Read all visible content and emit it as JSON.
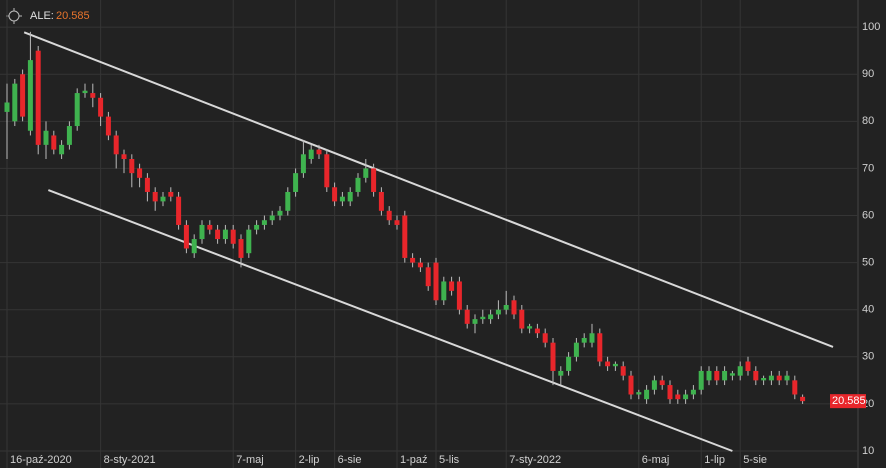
{
  "chart_data": {
    "type": "candlestick",
    "symbol_label": "ALE:",
    "last_label": "20.585",
    "up_color": "#3fb34f",
    "down_color": "#e8262b",
    "last_label_color": "#e8742c",
    "trendline_color": "#d8d8d8",
    "categories": [
      "16-paź-2020",
      null,
      null,
      null,
      null,
      null,
      null,
      null,
      null,
      null,
      null,
      null,
      "8-sty-2021",
      null,
      null,
      null,
      null,
      null,
      null,
      null,
      null,
      null,
      null,
      null,
      null,
      null,
      null,
      null,
      null,
      "7-maj",
      null,
      null,
      null,
      null,
      null,
      null,
      null,
      "2-lip",
      null,
      null,
      null,
      null,
      "6-sie",
      null,
      null,
      null,
      null,
      null,
      null,
      null,
      "1-paź",
      null,
      null,
      null,
      null,
      "5-lis",
      null,
      null,
      null,
      null,
      null,
      null,
      null,
      null,
      "7-sty-2022",
      null,
      null,
      null,
      null,
      null,
      null,
      null,
      null,
      null,
      null,
      null,
      null,
      null,
      null,
      null,
      null,
      "6-maj",
      null,
      null,
      null,
      null,
      null,
      null,
      null,
      "1-lip",
      null,
      null,
      null,
      null,
      "5-sie",
      null,
      null,
      null,
      null,
      null,
      null,
      null,
      null
    ],
    "open": [
      82,
      80,
      90,
      78,
      95,
      75,
      77,
      73,
      75,
      79,
      86,
      86,
      85,
      81,
      77,
      73,
      72,
      70,
      68,
      65,
      63,
      65,
      64,
      58,
      52,
      55,
      58,
      57,
      55,
      57,
      55,
      52,
      57,
      58,
      59,
      60,
      61,
      65,
      69,
      72,
      74,
      73,
      66,
      63,
      63,
      65,
      68,
      70,
      65,
      61,
      59,
      60,
      51,
      50,
      49,
      50,
      42,
      46,
      46,
      40,
      37,
      38,
      38,
      39,
      40,
      42,
      40,
      36,
      36,
      35,
      33,
      26,
      27,
      30,
      33,
      33,
      35,
      29,
      28,
      28,
      26,
      22,
      21,
      23,
      25,
      24,
      22,
      21,
      22,
      23,
      25,
      27,
      25,
      26,
      26,
      29,
      27,
      25,
      25,
      26,
      25,
      25,
      21.5
    ],
    "high": [
      88,
      89,
      91,
      99,
      96,
      80,
      78,
      76,
      80,
      87,
      88,
      88,
      86,
      82,
      78,
      74,
      73,
      71,
      69,
      66,
      65,
      66,
      65,
      59,
      56,
      59,
      59,
      58,
      58,
      58,
      56,
      58,
      59,
      60,
      61,
      62,
      66,
      70,
      76,
      75,
      75,
      74,
      67,
      65,
      66,
      69,
      72,
      71,
      66,
      62,
      60,
      61,
      52,
      51,
      50,
      51,
      47,
      47,
      47,
      41,
      39,
      40,
      40,
      42,
      44,
      43,
      41,
      37,
      37,
      36,
      34,
      28,
      31,
      34,
      35,
      37,
      36,
      30,
      29,
      29,
      27,
      23,
      24,
      26,
      26,
      25,
      23,
      23,
      24,
      28,
      28,
      28,
      28,
      27,
      29,
      30,
      28,
      26,
      27,
      27,
      27,
      26,
      22
    ],
    "low": [
      72,
      79,
      80,
      77,
      73,
      72,
      73,
      72,
      74,
      78,
      85,
      83,
      79,
      76,
      70,
      69,
      66,
      66,
      63,
      61,
      62,
      63,
      57,
      52,
      51,
      54,
      56,
      54,
      54,
      53,
      49,
      51,
      56,
      57,
      58,
      59,
      60,
      64,
      68,
      71,
      72,
      65,
      62,
      62,
      62,
      64,
      67,
      64,
      60,
      58,
      57,
      50,
      49,
      48,
      44,
      41,
      41,
      43,
      39,
      36,
      35,
      37,
      37,
      38,
      39,
      38,
      35,
      35,
      34,
      32,
      24,
      24,
      26,
      29,
      32,
      32,
      28,
      27,
      27,
      25,
      21,
      21,
      20,
      22,
      23,
      20,
      20,
      20,
      21,
      22,
      24,
      24,
      24,
      25,
      25,
      26,
      24,
      24,
      24,
      24,
      24,
      21,
      20
    ],
    "close": [
      84,
      88,
      81,
      93,
      75,
      78,
      74,
      75,
      79,
      86,
      86.5,
      85,
      81,
      77,
      73,
      72,
      69,
      68,
      65,
      63,
      64,
      64,
      58,
      53,
      55,
      58,
      57,
      55,
      57,
      54,
      51,
      57,
      58,
      59,
      60,
      61,
      65,
      69,
      73,
      74,
      73,
      66,
      63,
      64,
      65,
      68,
      70,
      65,
      61,
      59,
      58,
      51,
      50,
      49,
      45,
      42,
      46,
      44,
      40,
      37,
      38,
      38.5,
      39,
      40,
      41,
      39,
      36,
      36.5,
      35,
      33,
      27,
      27,
      30,
      33,
      34,
      35,
      29,
      28,
      28.5,
      26,
      22,
      22.5,
      23,
      25,
      24,
      21,
      21,
      22,
      23,
      27,
      27,
      25,
      27,
      26.5,
      28,
      27,
      25,
      25.5,
      26,
      25,
      26,
      22,
      20.585
    ],
    "trendlines": [
      {
        "x": [
          2.2,
          105.9
        ],
        "y": [
          98.9,
          32.1
        ]
      },
      {
        "x": [
          5.3,
          93
        ],
        "y": [
          65.4,
          10
        ]
      }
    ],
    "ylim": [
      10,
      104.7
    ],
    "yticks": [
      10,
      20,
      30,
      40,
      50,
      60,
      70,
      80,
      90,
      100
    ],
    "grid": true
  }
}
